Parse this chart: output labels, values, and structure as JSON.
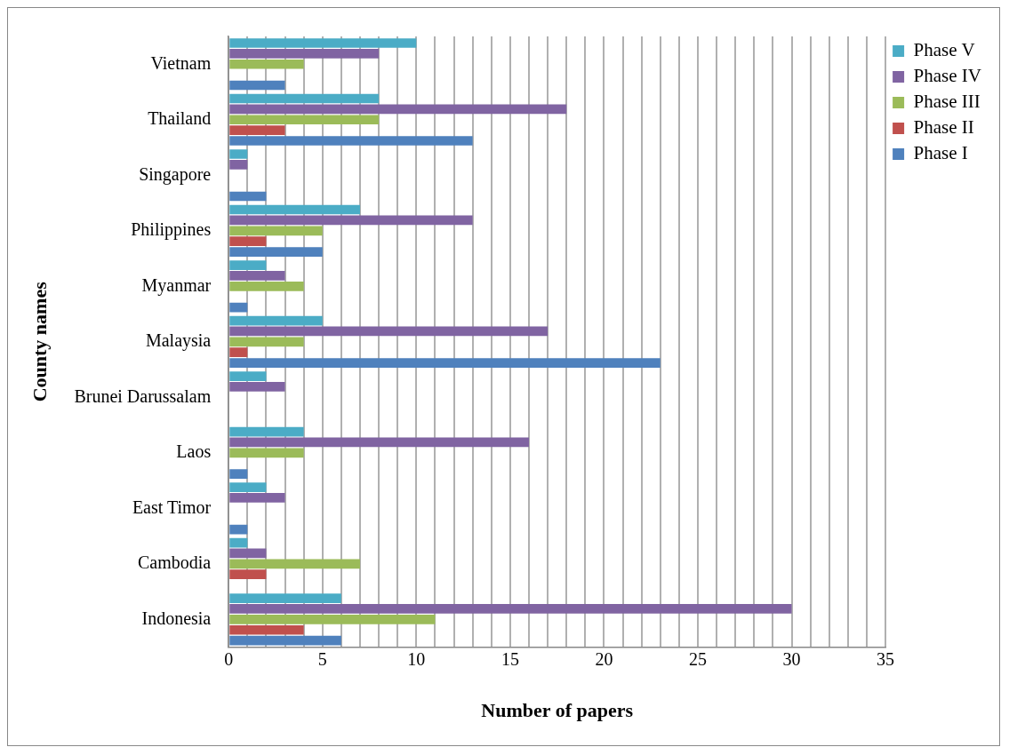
{
  "chart_data": {
    "type": "bar",
    "orientation": "horizontal",
    "xlabel": "Number of papers",
    "ylabel": "County names",
    "categories": [
      "Vietnam",
      "Thailand",
      "Singapore",
      "Philippines",
      "Myanmar",
      "Malaysia",
      "Brunei Darussalam",
      "Laos",
      "East Timor",
      "Cambodia",
      "Indonesia"
    ],
    "series": [
      {
        "name": "Phase V",
        "color": "#4bacc6",
        "values": [
          10,
          8,
          1,
          7,
          2,
          5,
          2,
          4,
          2,
          1,
          6
        ]
      },
      {
        "name": "Phase IV",
        "color": "#8064a2",
        "values": [
          8,
          18,
          1,
          13,
          3,
          17,
          3,
          16,
          3,
          2,
          30
        ]
      },
      {
        "name": "Phase III",
        "color": "#9bbb59",
        "values": [
          4,
          8,
          0,
          5,
          4,
          4,
          0,
          4,
          0,
          7,
          11
        ]
      },
      {
        "name": "Phase II",
        "color": "#c0504d",
        "values": [
          0,
          3,
          0,
          2,
          0,
          1,
          0,
          0,
          0,
          2,
          4
        ]
      },
      {
        "name": "Phase I",
        "color": "#4f81bd",
        "values": [
          3,
          13,
          2,
          5,
          1,
          23,
          0,
          1,
          1,
          0,
          6
        ]
      }
    ],
    "xlim": [
      0,
      35
    ],
    "xticks": [
      0,
      {
        "value": 1,
        "label": null
      },
      {
        "value": 2,
        "label": null
      },
      {
        "value": 3,
        "label": null
      },
      {
        "value": 4,
        "label": null
      },
      5,
      {
        "value": 6,
        "label": null
      },
      {
        "value": 7,
        "label": null
      },
      {
        "value": 8,
        "label": null
      },
      {
        "value": 9,
        "label": null
      },
      10,
      {
        "value": 11,
        "label": null
      },
      {
        "value": 12,
        "label": null
      },
      {
        "value": 13,
        "label": null
      },
      {
        "value": 14,
        "label": null
      },
      15,
      {
        "value": 16,
        "label": null
      },
      {
        "value": 17,
        "label": null
      },
      {
        "value": 18,
        "label": null
      },
      {
        "value": 19,
        "label": null
      },
      20,
      {
        "value": 21,
        "label": null
      },
      {
        "value": 22,
        "label": null
      },
      {
        "value": 23,
        "label": null
      },
      {
        "value": 24,
        "label": null
      },
      25,
      {
        "value": 26,
        "label": null
      },
      {
        "value": 27,
        "label": null
      },
      {
        "value": 28,
        "label": null
      },
      {
        "value": 29,
        "label": null
      },
      30,
      {
        "value": 31,
        "label": null
      },
      {
        "value": 32,
        "label": null
      },
      {
        "value": 33,
        "label": null
      },
      {
        "value": 34,
        "label": null
      },
      35
    ],
    "grid": "x",
    "legend": "right"
  }
}
